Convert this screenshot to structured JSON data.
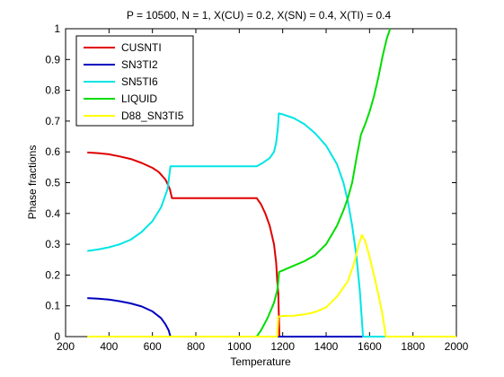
{
  "chart_data": {
    "type": "line",
    "title": "P = 10500, N = 1, X(CU) = 0.2, X(SN) = 0.4, X(TI) = 0.4",
    "xlabel": "Temperature",
    "ylabel": "Phase fractions",
    "xlim": [
      200,
      2000
    ],
    "ylim": [
      0,
      1
    ],
    "xticks": [
      "200",
      "400",
      "600",
      "800",
      "1000",
      "1200",
      "1400",
      "1600",
      "1800",
      "2000"
    ],
    "yticks": [
      "0",
      "0.1",
      "0.2",
      "0.3",
      "0.4",
      "0.5",
      "0.6",
      "0.7",
      "0.8",
      "0.9",
      "1"
    ],
    "grid": false,
    "legend_position": "top-left",
    "series": [
      {
        "name": "CUSNTI",
        "color": "#e00000",
        "points": [
          [
            300,
            0.598
          ],
          [
            350,
            0.596
          ],
          [
            400,
            0.592
          ],
          [
            450,
            0.585
          ],
          [
            500,
            0.577
          ],
          [
            550,
            0.564
          ],
          [
            600,
            0.548
          ],
          [
            630,
            0.534
          ],
          [
            660,
            0.51
          ],
          [
            680,
            0.48
          ],
          [
            690,
            0.45
          ],
          [
            700,
            0.45
          ],
          [
            800,
            0.45
          ],
          [
            900,
            0.45
          ],
          [
            1000,
            0.45
          ],
          [
            1080,
            0.45
          ],
          [
            1100,
            0.43
          ],
          [
            1120,
            0.4
          ],
          [
            1140,
            0.36
          ],
          [
            1160,
            0.3
          ],
          [
            1170,
            0.24
          ],
          [
            1175,
            0.18
          ],
          [
            1180,
            0.14
          ],
          [
            1182,
            0.08
          ],
          [
            1185,
            0.0
          ],
          [
            2000,
            0.0
          ]
        ]
      },
      {
        "name": "SN3TI2",
        "color": "#0000c0",
        "points": [
          [
            300,
            0.125
          ],
          [
            350,
            0.123
          ],
          [
            400,
            0.12
          ],
          [
            450,
            0.115
          ],
          [
            500,
            0.108
          ],
          [
            550,
            0.098
          ],
          [
            600,
            0.082
          ],
          [
            640,
            0.06
          ],
          [
            660,
            0.04
          ],
          [
            675,
            0.02
          ],
          [
            683,
            0.0
          ],
          [
            2000,
            0.0
          ]
        ]
      },
      {
        "name": "SN5TI6",
        "color": "#00e5e5",
        "points": [
          [
            300,
            0.278
          ],
          [
            350,
            0.283
          ],
          [
            400,
            0.29
          ],
          [
            450,
            0.3
          ],
          [
            500,
            0.315
          ],
          [
            550,
            0.34
          ],
          [
            600,
            0.375
          ],
          [
            640,
            0.42
          ],
          [
            670,
            0.48
          ],
          [
            683,
            0.553
          ],
          [
            700,
            0.553
          ],
          [
            800,
            0.553
          ],
          [
            900,
            0.553
          ],
          [
            1000,
            0.553
          ],
          [
            1080,
            0.553
          ],
          [
            1110,
            0.565
          ],
          [
            1140,
            0.58
          ],
          [
            1160,
            0.6
          ],
          [
            1170,
            0.63
          ],
          [
            1178,
            0.68
          ],
          [
            1182,
            0.725
          ],
          [
            1200,
            0.722
          ],
          [
            1250,
            0.71
          ],
          [
            1300,
            0.69
          ],
          [
            1350,
            0.66
          ],
          [
            1400,
            0.62
          ],
          [
            1450,
            0.56
          ],
          [
            1480,
            0.5
          ],
          [
            1500,
            0.44
          ],
          [
            1520,
            0.36
          ],
          [
            1540,
            0.26
          ],
          [
            1555,
            0.15
          ],
          [
            1565,
            0.05
          ],
          [
            1570,
            0.0
          ],
          [
            2000,
            0.0
          ]
        ]
      },
      {
        "name": "LIQUID",
        "color": "#00dd00",
        "points": [
          [
            300,
            0.0
          ],
          [
            1080,
            0.0
          ],
          [
            1100,
            0.02
          ],
          [
            1130,
            0.06
          ],
          [
            1160,
            0.11
          ],
          [
            1175,
            0.15
          ],
          [
            1180,
            0.18
          ],
          [
            1183,
            0.21
          ],
          [
            1200,
            0.215
          ],
          [
            1250,
            0.23
          ],
          [
            1300,
            0.245
          ],
          [
            1350,
            0.265
          ],
          [
            1400,
            0.3
          ],
          [
            1450,
            0.36
          ],
          [
            1480,
            0.41
          ],
          [
            1500,
            0.45
          ],
          [
            1520,
            0.5
          ],
          [
            1540,
            0.58
          ],
          [
            1560,
            0.655
          ],
          [
            1580,
            0.69
          ],
          [
            1600,
            0.73
          ],
          [
            1620,
            0.78
          ],
          [
            1640,
            0.84
          ],
          [
            1660,
            0.91
          ],
          [
            1680,
            0.97
          ],
          [
            1695,
            1.0
          ]
        ]
      },
      {
        "name": "D88_SN3TI5",
        "color": "#ffff00",
        "points": [
          [
            300,
            0.0
          ],
          [
            1175,
            0.0
          ],
          [
            1180,
            0.065
          ],
          [
            1200,
            0.067
          ],
          [
            1250,
            0.068
          ],
          [
            1300,
            0.072
          ],
          [
            1350,
            0.08
          ],
          [
            1400,
            0.095
          ],
          [
            1450,
            0.13
          ],
          [
            1500,
            0.18
          ],
          [
            1530,
            0.24
          ],
          [
            1550,
            0.3
          ],
          [
            1565,
            0.33
          ],
          [
            1580,
            0.31
          ],
          [
            1600,
            0.26
          ],
          [
            1620,
            0.2
          ],
          [
            1640,
            0.14
          ],
          [
            1660,
            0.07
          ],
          [
            1675,
            0.0
          ],
          [
            2000,
            0.0
          ]
        ]
      }
    ]
  }
}
